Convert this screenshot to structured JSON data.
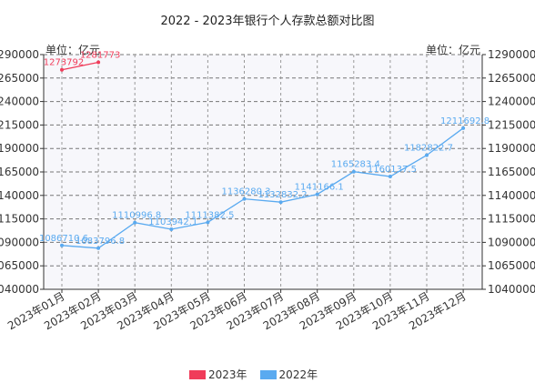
{
  "title": "2022 - 2023年银行个人存款总额对比图",
  "unit_left": "单位：亿元",
  "unit_right": "单位：亿元",
  "colors": {
    "series_2023": "#f03c5a",
    "series_2022": "#5aaaf0",
    "plot_bg": "#f7f7fb"
  },
  "chart_data": {
    "type": "line",
    "title": "2022 - 2023年银行个人存款总额对比图",
    "categories": [
      "2023年01月",
      "2023年02月",
      "2023年03月",
      "2023年04月",
      "2023年05月",
      "2023年06月",
      "2023年07月",
      "2023年08月",
      "2023年09月",
      "2023年10月",
      "2023年11月",
      "2023年12月"
    ],
    "ylim": [
      1040000,
      1290000
    ],
    "yticks": [
      1040000,
      1065000,
      1090000,
      1115000,
      1140000,
      1165000,
      1190000,
      1215000,
      1240000,
      1265000,
      1290000
    ],
    "grid": true,
    "legend_position": "bottom",
    "series": [
      {
        "name": "2023年",
        "values": [
          1273792,
          1281773,
          null,
          null,
          null,
          null,
          null,
          null,
          null,
          null,
          null,
          null
        ],
        "labels": [
          "1273792",
          "1281773",
          "",
          "",
          "",
          "",
          "",
          "",
          "",
          "",
          "",
          ""
        ]
      },
      {
        "name": "2022年",
        "values": [
          1086710.6,
          1083796.8,
          1110996.8,
          1103942.1,
          1111382.5,
          1136280.3,
          1132832.2,
          1141166.1,
          1165283.4,
          1160137.5,
          1182822.7,
          1211692.8
        ],
        "labels": [
          "1086710.6",
          "1083796.8",
          "1110996.8",
          "1103942.1",
          "1111382.5",
          "1136280.3",
          "1132832.2",
          "1141166.1",
          "1165283.4",
          "1160137.5",
          "1182822.7",
          "1211692.8"
        ]
      }
    ]
  }
}
